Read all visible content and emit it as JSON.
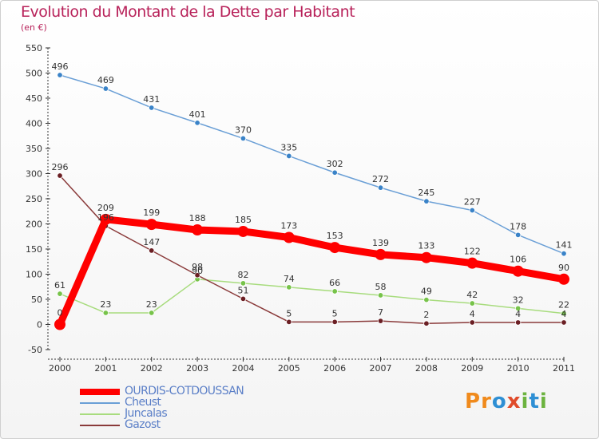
{
  "title": "Evolution du Montant de la Dette par Habitant",
  "subtitle": "(en €)",
  "logo": {
    "text": "Proxiti",
    "letters": [
      "P",
      "r",
      "o",
      "x",
      "i",
      "t",
      "i"
    ],
    "colors": [
      "#f08a1c",
      "#f08a1c",
      "#2e8fd4",
      "#e04b2a",
      "#6cb33f",
      "#2e8fd4",
      "#6cb33f"
    ]
  },
  "chart_data": {
    "type": "line",
    "title": "Evolution du Montant de la Dette par Habitant",
    "ylabel": "(en €)",
    "x": [
      "2000",
      "2001",
      "2002",
      "2003",
      "2004",
      "2005",
      "2006",
      "2007",
      "2008",
      "2009",
      "2010",
      "2011"
    ],
    "ylim": [
      -50,
      550
    ],
    "yticks": [
      "-50",
      "0",
      "50",
      "100",
      "150",
      "200",
      "250",
      "300",
      "350",
      "400",
      "450",
      "500",
      "550"
    ],
    "grid": false,
    "series": [
      {
        "name": "Cheust",
        "color": "#6a9fd6",
        "marker": "#3a83c8",
        "values": [
          496,
          469,
          431,
          401,
          370,
          335,
          302,
          272,
          245,
          227,
          178,
          141
        ],
        "labels": [
          "496",
          "469",
          "431",
          "401",
          "370",
          "335",
          "302",
          "272",
          "245",
          "227",
          "178",
          "141"
        ]
      },
      {
        "name": "Juncalas",
        "color": "#a8dc7e",
        "marker": "#77c34a",
        "values": [
          61,
          23,
          23,
          90,
          82,
          74,
          66,
          58,
          49,
          42,
          32,
          22
        ],
        "labels": [
          "61",
          "23",
          "23",
          "90",
          "82",
          "74",
          "66",
          "58",
          "49",
          "42",
          "32",
          "22"
        ]
      },
      {
        "name": "Gazost",
        "color": "#8a3a3a",
        "marker": "#6b1f24",
        "values": [
          296,
          196,
          147,
          98,
          51,
          5,
          5,
          7,
          2,
          4,
          4,
          4
        ],
        "labels": [
          "296",
          "196",
          "147",
          "98",
          "51",
          "5",
          "5",
          "7",
          "2",
          "4",
          "4",
          "4"
        ]
      },
      {
        "name": "OURDIS-COTDOUSSAN",
        "color": "#ff0000",
        "marker": "#ff0000",
        "values": [
          0,
          209,
          199,
          188,
          185,
          173,
          153,
          139,
          133,
          122,
          106,
          90
        ],
        "labels": [
          "0",
          "209",
          "199",
          "188",
          "185",
          "173",
          "153",
          "139",
          "133",
          "122",
          "106",
          "90"
        ]
      }
    ],
    "legend": [
      "OURDIS-COTDOUSSAN",
      "Cheust",
      "Juncalas",
      "Gazost"
    ]
  }
}
